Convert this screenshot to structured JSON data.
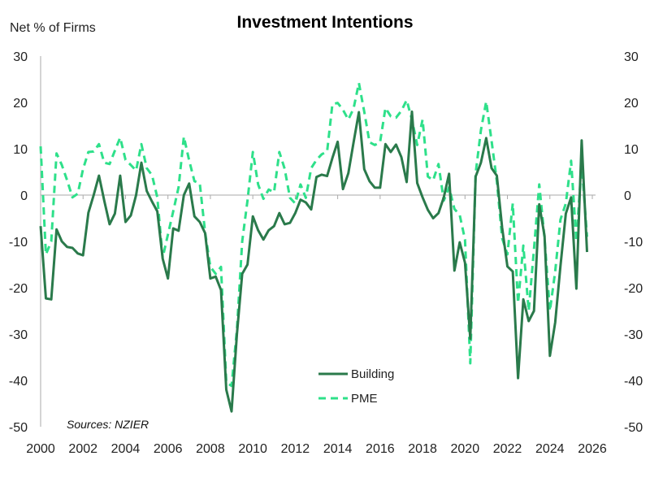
{
  "chart_data": {
    "type": "line",
    "title": "Investment Intentions",
    "ylabel": "Net % of Firms",
    "source_note": "Sources: NZIER",
    "ylim": [
      -50,
      30
    ],
    "xlim": [
      2000,
      2026
    ],
    "yticks": [
      30,
      20,
      10,
      0,
      -10,
      -20,
      -30,
      -40,
      -50
    ],
    "xticks": [
      2000,
      2002,
      2004,
      2006,
      2008,
      2010,
      2012,
      2014,
      2016,
      2018,
      2020,
      2022,
      2024,
      2026
    ],
    "x_start": 2000,
    "x_frequency": "quarterly",
    "grid": false,
    "legend_position": "bottom-center",
    "series": [
      {
        "name": "Building",
        "color": "#2a7a4b",
        "style": "solid",
        "values": [
          -6.7,
          -22.3,
          -22.5,
          -7.4,
          -10,
          -11.2,
          -11.4,
          -12.6,
          -13,
          -3.8,
          0,
          4.2,
          -1.2,
          -6.3,
          -4,
          4.2,
          -5.8,
          -4.4,
          0,
          7,
          0.9,
          -1.4,
          -3.5,
          -13.7,
          -18,
          -7.2,
          -7.7,
          0,
          2.5,
          -4.6,
          -5.8,
          -8.2,
          -18,
          -17.6,
          -20.5,
          -42,
          -46.7,
          -30,
          -17,
          -15,
          -4.6,
          -7.6,
          -9.6,
          -7.6,
          -6.7,
          -3.9,
          -6.3,
          -6,
          -3.9,
          -1,
          -1.6,
          -3.1,
          3.9,
          4.4,
          4.1,
          8,
          11.5,
          1.3,
          4.7,
          11.4,
          17.9,
          5.6,
          3,
          1.6,
          1.6,
          11,
          9.3,
          10.9,
          8.2,
          2.8,
          18,
          2.6,
          -0.5,
          -3.2,
          -5,
          -3.9,
          -0.5,
          4.6,
          -16.3,
          -10.2,
          -14.6,
          -31,
          4,
          7,
          12.3,
          5.8,
          4.2,
          -7,
          -15.4,
          -16.5,
          -39.5,
          -22.5,
          -27.2,
          -25,
          -2,
          -8.8,
          -34.7,
          -27.5,
          -15.3,
          -4,
          -0.5,
          -20.2,
          11.8,
          -12.3
        ]
      },
      {
        "name": "PME",
        "color": "#2ee08a",
        "style": "dashed",
        "values": [
          10.5,
          -12.8,
          -10,
          9,
          6.5,
          3.2,
          -0.5,
          0.3,
          5.6,
          9.3,
          9.4,
          11,
          7,
          6.7,
          9.6,
          12.4,
          7.6,
          6.5,
          5.3,
          11,
          5.8,
          4.3,
          -0.5,
          -13.5,
          -8.5,
          -3.5,
          1.7,
          12.6,
          7.5,
          3,
          2.5,
          -8,
          -15.5,
          -17,
          -15.5,
          -40.4,
          -41.2,
          -29,
          -10,
          -1.2,
          9.3,
          2.3,
          -0.8,
          1.2,
          0.6,
          9.3,
          5.7,
          -0.6,
          -1.8,
          2.3,
          -0.6,
          5.8,
          7.6,
          8.8,
          9.4,
          19.6,
          19.9,
          18.4,
          16.3,
          18.7,
          24.2,
          18,
          11.4,
          10.8,
          11.4,
          18.8,
          17,
          16.7,
          18.2,
          20.5,
          16.3,
          10.8,
          16.3,
          4,
          3.2,
          6.7,
          -1.2,
          1.7,
          -3,
          -4.3,
          -9.6,
          -36.3,
          4.7,
          14,
          20.2,
          11.7,
          3,
          -9.3,
          -12.8,
          -1.8,
          -23.3,
          -10.9,
          -25,
          -11.7,
          2.3,
          -9.3,
          -25,
          -16.5,
          -5.3,
          -1.8,
          7.4,
          -10,
          7,
          -9
        ]
      }
    ]
  }
}
